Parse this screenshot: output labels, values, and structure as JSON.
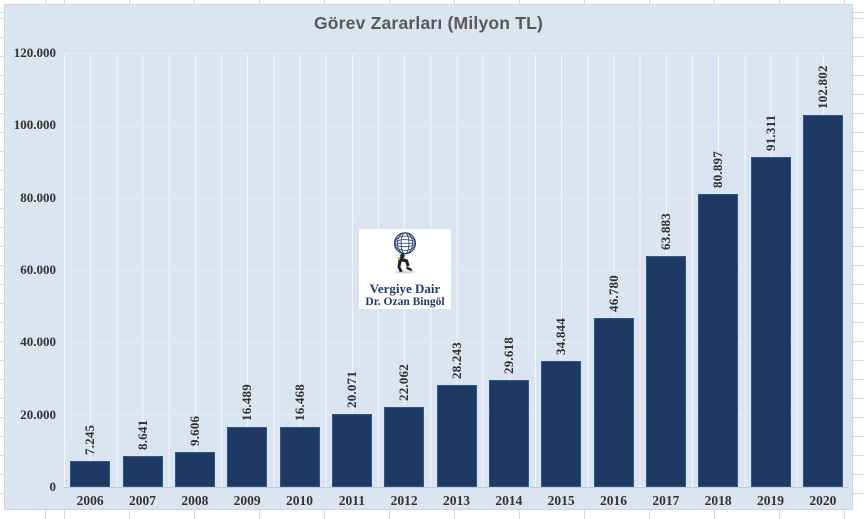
{
  "chart_data": {
    "type": "bar",
    "title": "Görev Zararları (Milyon TL)",
    "categories": [
      "2006",
      "2007",
      "2008",
      "2009",
      "2010",
      "2011",
      "2012",
      "2013",
      "2014",
      "2015",
      "2016",
      "2017",
      "2018",
      "2019",
      "2020"
    ],
    "values": [
      7245,
      8641,
      9606,
      16489,
      16468,
      20071,
      22062,
      28243,
      29618,
      34844,
      46780,
      63883,
      80897,
      91311,
      102802
    ],
    "value_labels": [
      "7.245",
      "8.641",
      "9.606",
      "16.489",
      "16.468",
      "20.071",
      "22.062",
      "28.243",
      "29.618",
      "34.844",
      "46.780",
      "63.883",
      "80.897",
      "91.311",
      "102.802"
    ],
    "xlabel": "",
    "ylabel": "",
    "ylim": [
      0,
      120000
    ],
    "y_tick_values": [
      0,
      20000,
      40000,
      60000,
      80000,
      100000,
      120000
    ],
    "y_tick_labels": [
      "0",
      "20.000",
      "40.000",
      "60.000",
      "80.000",
      "100.000",
      "120.000"
    ],
    "grid": {
      "horizontal": "major",
      "vertical": "minor-and-major"
    },
    "legend": "none",
    "bar_label_rotation_deg": 90
  },
  "logo": {
    "icon": "atlas-carrying-globe",
    "line1": "Vergiye Dair",
    "line2": "Dr. Ozan Bingöl"
  },
  "colors": {
    "bar_fill": "#1e3a63",
    "bar_border": "#2e5792",
    "chart_bg": "#dbe4f1",
    "grid_h": "#e7ebf2",
    "grid_v": "#f3f6fb",
    "axis_line": "#c6ccd6",
    "title": "#595959",
    "tick_text": "#333333",
    "data_label": "#303030",
    "logo_text": "#1e3a66",
    "sheet_line": "#d5dae3"
  }
}
